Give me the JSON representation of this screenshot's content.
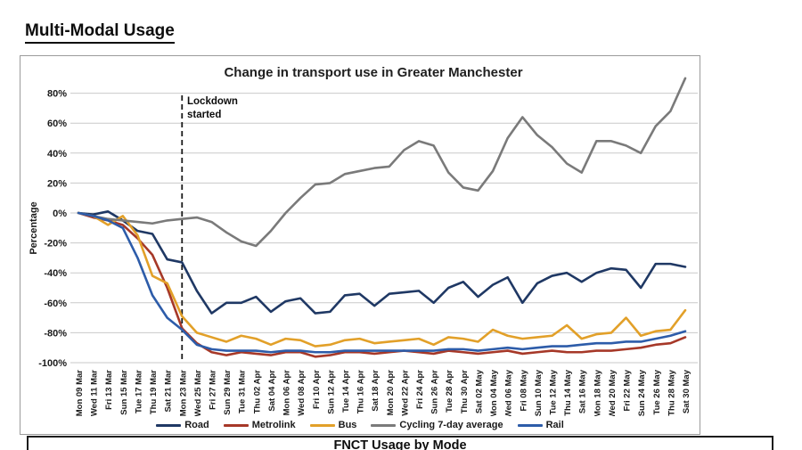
{
  "page": {
    "heading": "Multi-Modal Usage"
  },
  "chart_data": {
    "type": "line",
    "title": "Change in transport use in Greater Manchester",
    "xlabel": "",
    "ylabel": "Percentage",
    "ylim": [
      -100,
      80
    ],
    "ytick_step": 20,
    "ytick_suffix": "%",
    "grid": true,
    "legend_position": "bottom",
    "annotation": {
      "label": "Lockdown started",
      "x_category": "Mon 23 Mar",
      "line_style": "dashed"
    },
    "categories": [
      "Mon 09 Mar",
      "Wed 11 Mar",
      "Fri 13 Mar",
      "Sun 15 Mar",
      "Tue 17 Mar",
      "Thu 19 Mar",
      "Sat 21 Mar",
      "Mon 23 Mar",
      "Wed 25 Mar",
      "Fri 27 Mar",
      "Sun 29 Mar",
      "Tue 31 Mar",
      "Thu 02 Apr",
      "Sat 04 Apr",
      "Mon 06 Apr",
      "Wed 08 Apr",
      "Fri 10 Apr",
      "Sun 12 Apr",
      "Tue 14 Apr",
      "Thu 16 Apr",
      "Sat 18 Apr",
      "Mon 20 Apr",
      "Wed 22 Apr",
      "Fri 24 Apr",
      "Sun 26 Apr",
      "Tue 28 Apr",
      "Thu 30 Apr",
      "Sat 02 May",
      "Mon 04 May",
      "Wed 06 May",
      "Fri 08 May",
      "Sun 10 May",
      "Tue 12 May",
      "Thu 14 May",
      "Sat 16 May",
      "Mon 18 May",
      "Wed 20 May",
      "Fri 22 May",
      "Sun 24 May",
      "Tue 26 May",
      "Thu 28 May",
      "Sat 30 May"
    ],
    "series": [
      {
        "name": "Road",
        "color": "#1F3864",
        "values": [
          0,
          -1,
          1,
          -5,
          -12,
          -14,
          -31,
          -33,
          -52,
          -67,
          -60,
          -60,
          -56,
          -66,
          -59,
          -57,
          -67,
          -66,
          -55,
          -54,
          -62,
          -54,
          -53,
          -52,
          -60,
          -50,
          -46,
          -56,
          -48,
          -43,
          -60,
          -47,
          -42,
          -40,
          -46,
          -40,
          -37,
          -38,
          -50,
          -34,
          -34,
          -36
        ]
      },
      {
        "name": "Metrolink",
        "color": "#A63828",
        "values": [
          0,
          -3,
          -5,
          -8,
          -17,
          -28,
          -50,
          -77,
          -87,
          -93,
          -95,
          -93,
          -94,
          -95,
          -93,
          -93,
          -96,
          -95,
          -93,
          -93,
          -94,
          -93,
          -92,
          -93,
          -94,
          -92,
          -93,
          -94,
          -93,
          -92,
          -94,
          -93,
          -92,
          -93,
          -93,
          -92,
          -92,
          -91,
          -90,
          -88,
          -87,
          -83
        ]
      },
      {
        "name": "Bus",
        "color": "#E2A029",
        "values": [
          0,
          -2,
          -8,
          -2,
          -15,
          -42,
          -47,
          -69,
          -80,
          -83,
          -86,
          -82,
          -84,
          -88,
          -84,
          -85,
          -89,
          -88,
          -85,
          -84,
          -87,
          -86,
          -85,
          -84,
          -88,
          -83,
          -84,
          -86,
          -78,
          -82,
          -84,
          -83,
          -82,
          -75,
          -84,
          -81,
          -80,
          -70,
          -82,
          -79,
          -78,
          -65
        ]
      },
      {
        "name": "Cycling 7-day average",
        "color": "#7A7A7A",
        "values": [
          0,
          -2,
          -4,
          -5,
          -6,
          -7,
          -5,
          -4,
          -3,
          -6,
          -13,
          -19,
          -22,
          -12,
          0,
          10,
          19,
          20,
          26,
          28,
          30,
          31,
          42,
          48,
          45,
          27,
          17,
          15,
          28,
          50,
          64,
          52,
          44,
          33,
          27,
          48,
          48,
          45,
          40,
          58,
          68,
          90
        ]
      },
      {
        "name": "Rail",
        "color": "#2D5CA9",
        "values": [
          0,
          -2,
          -5,
          -10,
          -30,
          -55,
          -70,
          -78,
          -88,
          -91,
          -92,
          -92,
          -92,
          -93,
          -92,
          -92,
          -93,
          -93,
          -92,
          -92,
          -92,
          -92,
          -92,
          -92,
          -92,
          -91,
          -91,
          -92,
          -91,
          -90,
          -91,
          -90,
          -89,
          -89,
          -88,
          -87,
          -87,
          -86,
          -86,
          -84,
          -82,
          -79
        ]
      }
    ]
  },
  "bottom_section": {
    "title": "FNCT Usage by Mode"
  }
}
